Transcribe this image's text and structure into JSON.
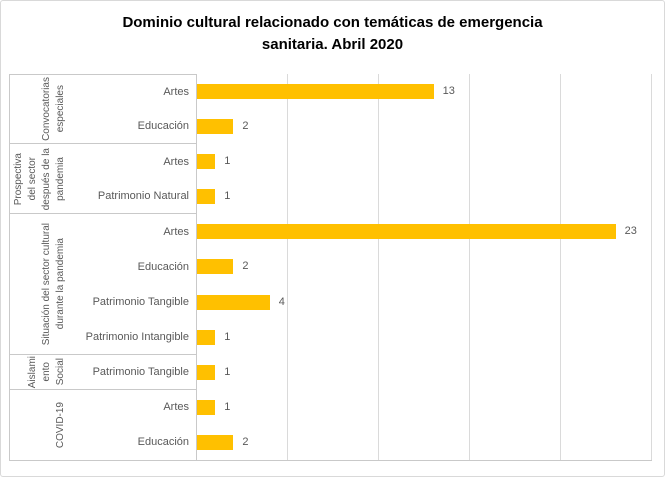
{
  "chart_data": {
    "type": "bar",
    "orientation": "horizontal",
    "title": "Dominio cultural relacionado con temáticas de emergencia sanitaria. Abril 2020",
    "x_axis": {
      "min": 0,
      "max": 25,
      "gridline_step": 5,
      "tick_labels_visible": false
    },
    "legend": "none",
    "grid": "vertical-on",
    "bar_color": "#FFC000",
    "groups": [
      {
        "label": "Convocatorias especiales",
        "label_lines": [
          "Convocatorias",
          "especiales"
        ],
        "items": [
          {
            "category": "Artes",
            "value": 13
          },
          {
            "category": "Educación",
            "value": 2
          }
        ]
      },
      {
        "label": "Prospectiva del sector después de la pandemia",
        "label_lines": [
          "Prospectiva",
          "del sector",
          "después de la",
          "pandemia"
        ],
        "items": [
          {
            "category": "Artes",
            "value": 1
          },
          {
            "category": "Patrimonio Natural",
            "value": 1
          }
        ]
      },
      {
        "label": "Situación del sector cultural durante la pandemia",
        "label_lines": [
          "Situación del sector cultural",
          "durante la pandemia"
        ],
        "items": [
          {
            "category": "Artes",
            "value": 23
          },
          {
            "category": "Educación",
            "value": 2
          },
          {
            "category": "Patrimonio Tangible",
            "value": 4
          },
          {
            "category": "Patrimonio Intangible",
            "value": 1
          }
        ]
      },
      {
        "label": "Aislamiento Social",
        "label_lines": [
          "Aislami",
          "ento",
          "Social"
        ],
        "items": [
          {
            "category": "Patrimonio Tangible",
            "value": 1
          }
        ]
      },
      {
        "label": "COVID-19",
        "label_lines": [
          "COVID-19"
        ],
        "items": [
          {
            "category": "Artes",
            "value": 1
          },
          {
            "category": "Educación",
            "value": 2
          }
        ]
      }
    ]
  },
  "colors": {
    "bar": "#FFC000",
    "gridline": "#dadada",
    "axis_line": "#c9c9c9",
    "label_text": "#595959",
    "title_text": "#000000",
    "frame_border": "#d9d9d9"
  }
}
